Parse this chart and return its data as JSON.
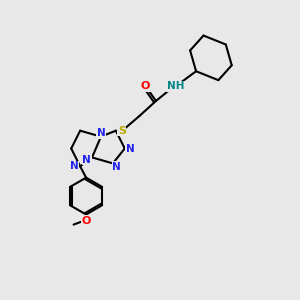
{
  "bg_color": "#e8e8e8",
  "atom_colors": {
    "C": "#000000",
    "N": "#2222ee",
    "O": "#ff0000",
    "S": "#bbaa00",
    "H": "#008888"
  },
  "figsize": [
    3.0,
    3.0
  ],
  "dpi": 100
}
